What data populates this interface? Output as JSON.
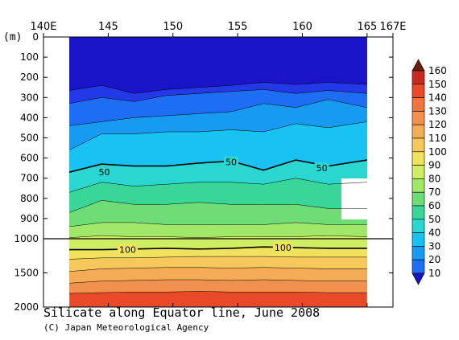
{
  "title": "Silicate along Equator line, June 2008",
  "credit": "(C) Japan Meteorological Agency",
  "chart_data": {
    "type": "heatmap",
    "x_ticks": [
      "140E",
      "145",
      "150",
      "155",
      "160",
      "165",
      "167E"
    ],
    "x_tick_values": [
      140,
      145,
      150,
      155,
      160,
      165,
      167
    ],
    "xlim": [
      140,
      167
    ],
    "y_unit": "(m)",
    "y_ticks_upper": [
      "0",
      "100",
      "200",
      "300",
      "400",
      "500",
      "600",
      "700",
      "800",
      "900",
      "1000"
    ],
    "y_ticks_lower": [
      "1500",
      "2000"
    ],
    "ylim": [
      0,
      2000
    ],
    "y_break": 1000,
    "data_xrange": [
      142,
      165
    ],
    "missing_region": {
      "x": [
        163.5,
        165
      ],
      "depth": [
        700,
        900
      ]
    },
    "contour_interval": 10,
    "emphasized_contours": [
      50,
      100
    ],
    "contour_labels": [
      {
        "value": "50",
        "x": 144.7,
        "depth": 670
      },
      {
        "value": "50",
        "x": 154.5,
        "depth": 620
      },
      {
        "value": "50",
        "x": 161.5,
        "depth": 650
      },
      {
        "value": "100",
        "x": 146.5,
        "depth": 1160
      },
      {
        "value": "100",
        "x": 158.5,
        "depth": 1130
      }
    ],
    "contour_levels_depth": [
      {
        "level": 10,
        "depth": [
          265,
          240,
          280,
          260,
          250,
          240,
          225,
          235,
          225,
          235
        ]
      },
      {
        "level": 20,
        "depth": [
          330,
          300,
          320,
          290,
          280,
          270,
          260,
          280,
          265,
          280
        ]
      },
      {
        "level": 30,
        "depth": [
          440,
          420,
          400,
          390,
          380,
          370,
          330,
          350,
          310,
          350
        ]
      },
      {
        "level": 40,
        "depth": [
          560,
          480,
          480,
          470,
          470,
          460,
          470,
          430,
          450,
          420
        ]
      },
      {
        "level": 50,
        "depth": [
          670,
          630,
          640,
          640,
          625,
          615,
          660,
          610,
          640,
          610
        ]
      },
      {
        "level": 60,
        "depth": [
          770,
          720,
          740,
          730,
          720,
          720,
          730,
          700,
          730,
          720
        ]
      },
      {
        "level": 70,
        "depth": [
          870,
          810,
          830,
          830,
          820,
          830,
          830,
          830,
          850,
          850
        ]
      },
      {
        "level": 80,
        "depth": [
          940,
          920,
          920,
          930,
          930,
          930,
          930,
          920,
          930,
          930
        ]
      },
      {
        "level": 90,
        "depth": [
          995,
          985,
          990,
          990,
          995,
          990,
          990,
          990,
          985,
          990
        ]
      },
      {
        "level": 100,
        "depth": [
          1160,
          1160,
          1150,
          1140,
          1150,
          1140,
          1120,
          1130,
          1140,
          1140
        ]
      },
      {
        "level": 110,
        "depth": [
          1300,
          1280,
          1280,
          1270,
          1260,
          1260,
          1260,
          1270,
          1270,
          1270
        ]
      },
      {
        "level": 120,
        "depth": [
          1480,
          1440,
          1430,
          1420,
          1420,
          1430,
          1420,
          1430,
          1440,
          1440
        ]
      },
      {
        "level": 130,
        "depth": [
          1650,
          1620,
          1610,
          1600,
          1600,
          1610,
          1600,
          1610,
          1620,
          1620
        ]
      },
      {
        "level": 140,
        "depth": [
          1800,
          1790,
          1780,
          1780,
          1770,
          1780,
          1780,
          1780,
          1790,
          1790
        ]
      }
    ],
    "contour_x": [
      142,
      144.5,
      147,
      149.5,
      152,
      154.5,
      157,
      159.5,
      162,
      165
    ],
    "colorbar": {
      "ticks": [
        "160",
        "150",
        "140",
        "130",
        "120",
        "110",
        "100",
        "90",
        "80",
        "70",
        "60",
        "50",
        "40",
        "30",
        "20",
        "10"
      ],
      "colors": [
        "#6a1f0e",
        "#c8281e",
        "#e84a28",
        "#ef7440",
        "#f2914d",
        "#f5ad55",
        "#f7c85c",
        "#f1e25e",
        "#cfee64",
        "#a0e86a",
        "#6edd76",
        "#39d69a",
        "#2ad6d0",
        "#18c3f3",
        "#179af2",
        "#1d6ef5",
        "#2338e6",
        "#1a14c8"
      ]
    }
  }
}
